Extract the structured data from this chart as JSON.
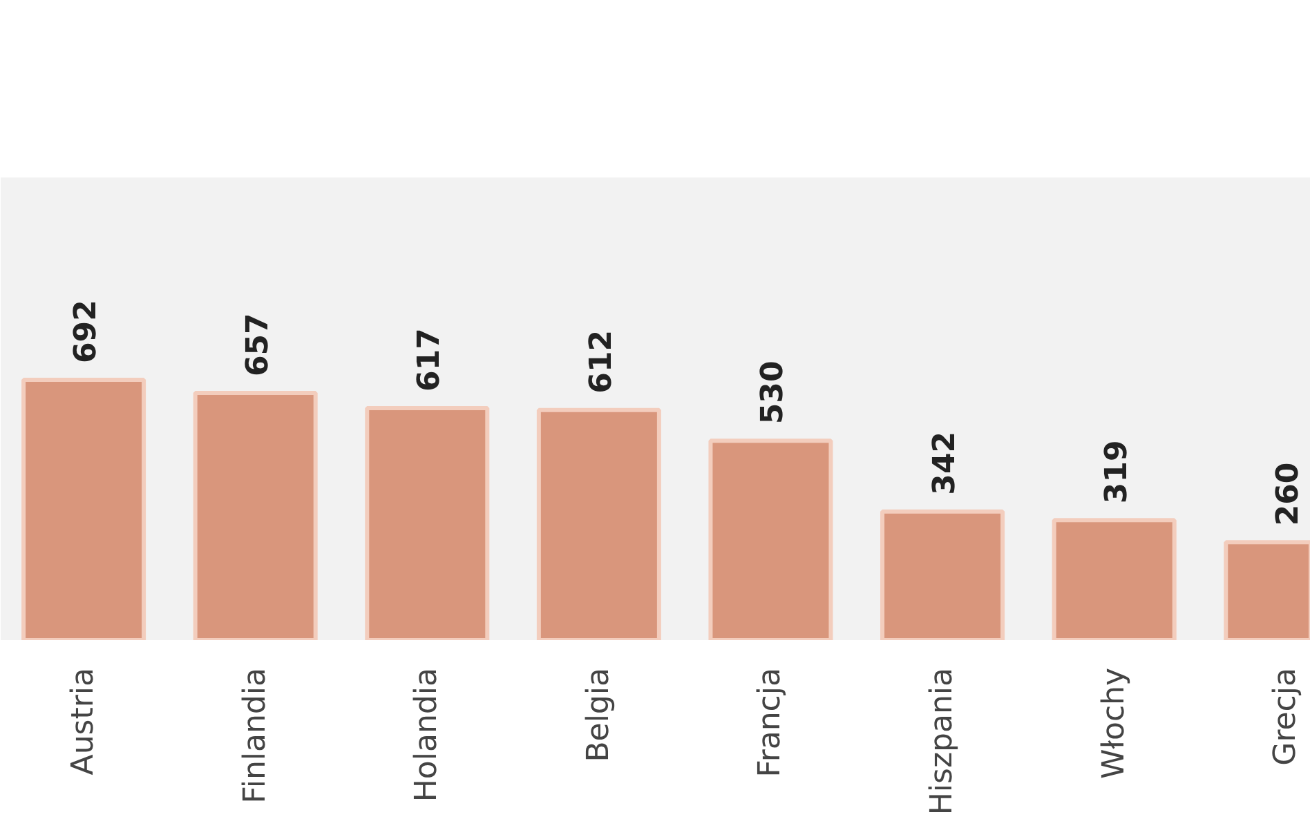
{
  "chart_data": {
    "type": "bar",
    "categories": [
      "Austria",
      "Finlandia",
      "Holandia",
      "Belgia",
      "Francja",
      "Hiszpania",
      "Włochy",
      "Grecja"
    ],
    "values": [
      692,
      657,
      617,
      612,
      530,
      342,
      319,
      260
    ],
    "data_labels": true,
    "color": "#d9967c",
    "ylim": [
      0,
      1230
    ],
    "tick_labels": "x"
  }
}
